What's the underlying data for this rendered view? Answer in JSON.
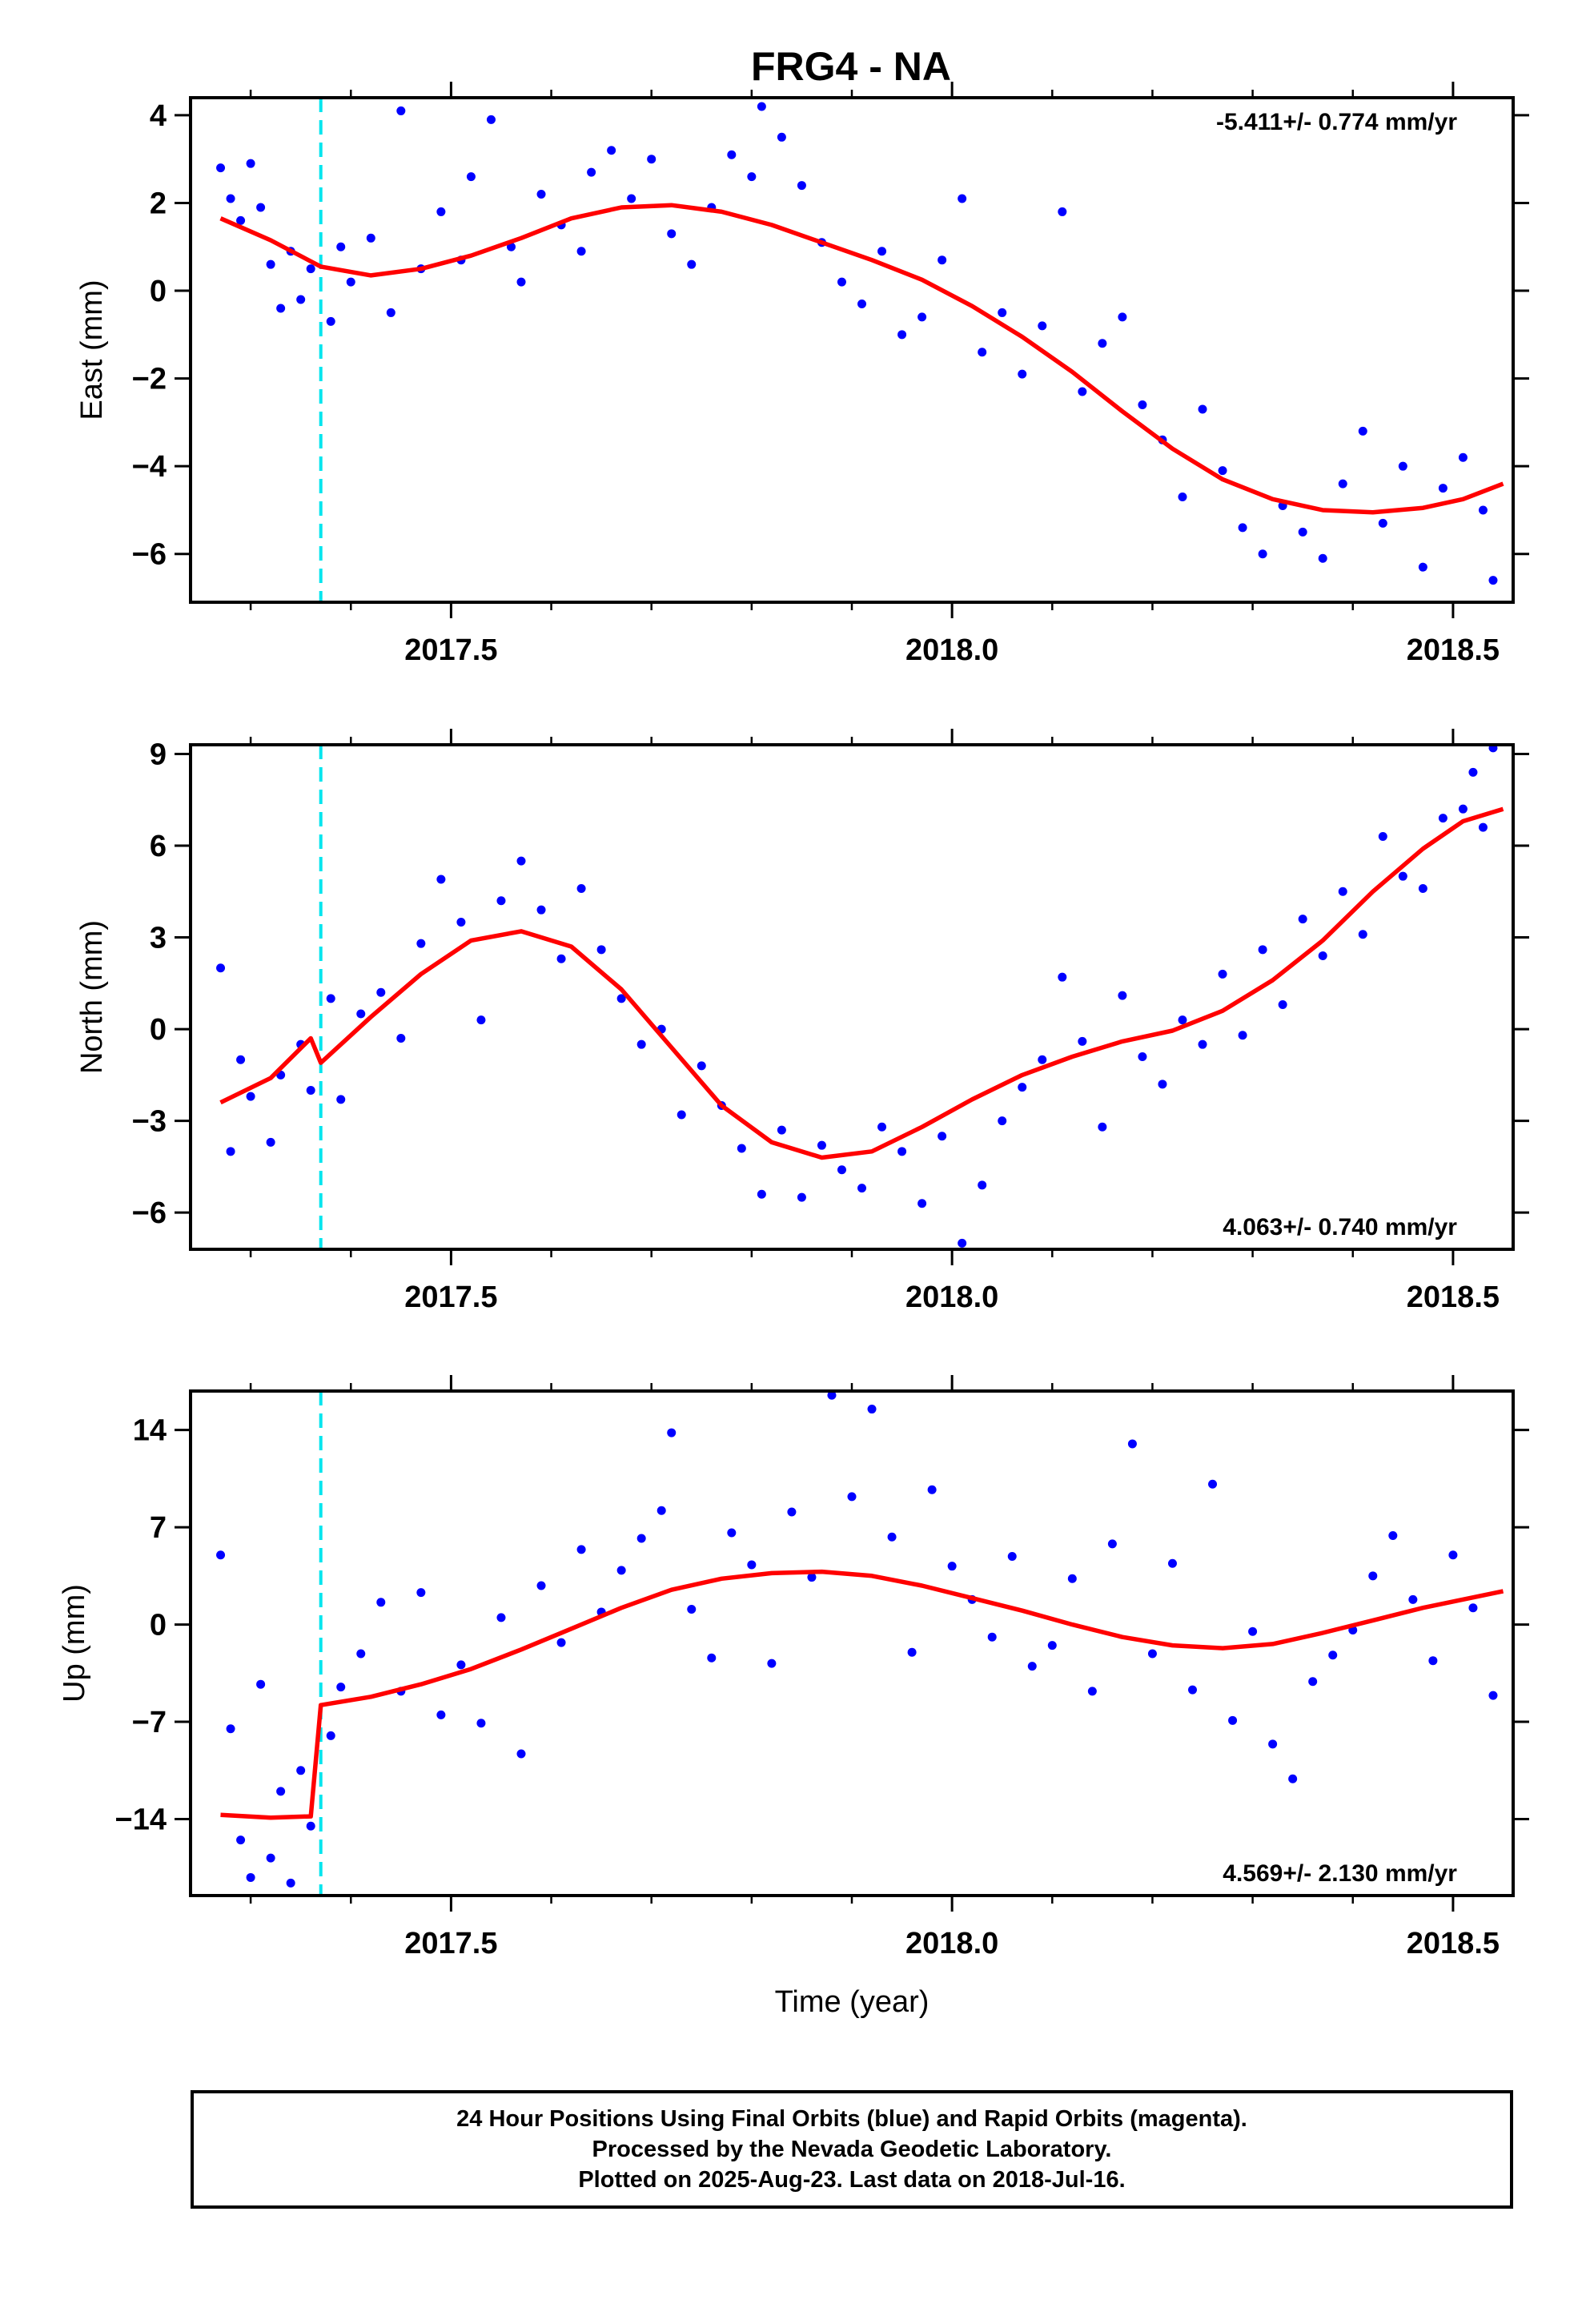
{
  "title": "FRG4 - NA",
  "footer": {
    "line1": "24 Hour Positions Using Final Orbits (blue) and Rapid Orbits (magenta).",
    "line2": "Processed by the Nevada Geodetic Laboratory.",
    "line3": "Plotted on 2025-Aug-23. Last data on 2018-Jul-16."
  },
  "colors": {
    "final_points": "#0000ff",
    "model": "#ff0000",
    "offset_line": "#00e5ee",
    "frame": "#000000"
  },
  "chart_data": [
    {
      "type": "scatter",
      "ylabel": "East (mm)",
      "xlabel": "",
      "xlim": [
        2017.24,
        2018.56
      ],
      "ylim": [
        -7.1,
        4.4
      ],
      "xticks": [
        2017.5,
        2018.0,
        2018.5
      ],
      "xtick_labels": [
        "2017.5",
        "2018.0",
        "2018.5"
      ],
      "yticks": [
        4,
        2,
        0,
        -2,
        -4,
        -6
      ],
      "ytick_labels": [
        "4",
        "2",
        "0",
        "−2",
        "−4",
        "−6"
      ],
      "rate": "-5.411+/- 0.774 mm/yr",
      "rate_position": "top-right",
      "offset_epoch": 2017.37,
      "model": {
        "x": [
          2017.27,
          2017.32,
          2017.37,
          2017.42,
          2017.47,
          2017.52,
          2017.57,
          2017.62,
          2017.67,
          2017.72,
          2017.77,
          2017.82,
          2017.87,
          2017.92,
          2017.97,
          2018.02,
          2018.07,
          2018.12,
          2018.17,
          2018.22,
          2018.27,
          2018.32,
          2018.37,
          2018.42,
          2018.47,
          2018.51,
          2018.55
        ],
        "y": [
          1.65,
          1.15,
          0.55,
          0.35,
          0.5,
          0.8,
          1.2,
          1.65,
          1.9,
          1.95,
          1.8,
          1.5,
          1.1,
          0.7,
          0.25,
          -0.35,
          -1.05,
          -1.85,
          -2.75,
          -3.6,
          -4.3,
          -4.75,
          -5.0,
          -5.05,
          -4.95,
          -4.75,
          -4.4
        ]
      },
      "points": {
        "x": [
          2017.27,
          2017.28,
          2017.29,
          2017.3,
          2017.31,
          2017.32,
          2017.33,
          2017.34,
          2017.35,
          2017.36,
          2017.38,
          2017.39,
          2017.4,
          2017.42,
          2017.44,
          2017.45,
          2017.47,
          2017.49,
          2017.51,
          2017.52,
          2017.54,
          2017.56,
          2017.57,
          2017.59,
          2017.61,
          2017.63,
          2017.64,
          2017.66,
          2017.68,
          2017.7,
          2017.72,
          2017.74,
          2017.76,
          2017.78,
          2017.8,
          2017.81,
          2017.83,
          2017.85,
          2017.87,
          2017.89,
          2017.91,
          2017.93,
          2017.95,
          2017.97,
          2017.99,
          2018.01,
          2018.03,
          2018.05,
          2018.07,
          2018.09,
          2018.11,
          2018.13,
          2018.15,
          2018.17,
          2018.19,
          2018.21,
          2018.23,
          2018.25,
          2018.27,
          2018.29,
          2018.31,
          2018.33,
          2018.35,
          2018.37,
          2018.39,
          2018.41,
          2018.43,
          2018.45,
          2018.47,
          2018.49,
          2018.51,
          2018.53,
          2018.54
        ],
        "y": [
          2.8,
          2.1,
          1.6,
          2.9,
          1.9,
          0.6,
          -0.4,
          0.9,
          -0.2,
          0.5,
          -0.7,
          1.0,
          0.2,
          1.2,
          -0.5,
          4.1,
          0.5,
          1.8,
          0.7,
          2.6,
          3.9,
          1.0,
          0.2,
          2.2,
          1.5,
          0.9,
          2.7,
          3.2,
          2.1,
          3.0,
          1.3,
          0.6,
          1.9,
          3.1,
          2.6,
          4.2,
          3.5,
          2.4,
          1.1,
          0.2,
          -0.3,
          0.9,
          -1.0,
          -0.6,
          0.7,
          2.1,
          -1.4,
          -0.5,
          -1.9,
          -0.8,
          1.8,
          -2.3,
          -1.2,
          -0.6,
          -2.6,
          -3.4,
          -4.7,
          -2.7,
          -4.1,
          -5.4,
          -6.0,
          -4.9,
          -5.5,
          -6.1,
          -4.4,
          -3.2,
          -5.3,
          -4.0,
          -6.3,
          -4.5,
          -3.8,
          -5.0,
          -6.6
        ]
      }
    },
    {
      "type": "scatter",
      "ylabel": "North (mm)",
      "xlabel": "",
      "xlim": [
        2017.24,
        2018.56
      ],
      "ylim": [
        -7.2,
        9.3
      ],
      "xticks": [
        2017.5,
        2018.0,
        2018.5
      ],
      "xtick_labels": [
        "2017.5",
        "2018.0",
        "2018.5"
      ],
      "yticks": [
        9,
        6,
        3,
        0,
        -3,
        -6
      ],
      "ytick_labels": [
        "9",
        "6",
        "3",
        "0",
        "−3",
        "−6"
      ],
      "rate": "4.063+/- 0.740 mm/yr",
      "rate_position": "bottom-right",
      "offset_epoch": 2017.37,
      "model": {
        "x": [
          2017.27,
          2017.32,
          2017.36,
          2017.37,
          2017.42,
          2017.47,
          2017.52,
          2017.57,
          2017.62,
          2017.67,
          2017.72,
          2017.77,
          2017.82,
          2017.87,
          2017.92,
          2017.97,
          2018.02,
          2018.07,
          2018.12,
          2018.17,
          2018.22,
          2018.27,
          2018.32,
          2018.37,
          2018.42,
          2018.47,
          2018.51,
          2018.55
        ],
        "y": [
          -2.4,
          -1.6,
          -0.3,
          -1.1,
          0.4,
          1.8,
          2.9,
          3.2,
          2.7,
          1.3,
          -0.6,
          -2.5,
          -3.7,
          -4.2,
          -4.0,
          -3.2,
          -2.3,
          -1.5,
          -0.9,
          -0.4,
          -0.05,
          0.6,
          1.6,
          2.9,
          4.5,
          5.9,
          6.8,
          7.2
        ]
      },
      "points": {
        "x": [
          2017.27,
          2017.28,
          2017.29,
          2017.3,
          2017.32,
          2017.33,
          2017.35,
          2017.36,
          2017.38,
          2017.39,
          2017.41,
          2017.43,
          2017.45,
          2017.47,
          2017.49,
          2017.51,
          2017.53,
          2017.55,
          2017.57,
          2017.59,
          2017.61,
          2017.63,
          2017.65,
          2017.67,
          2017.69,
          2017.71,
          2017.73,
          2017.75,
          2017.77,
          2017.79,
          2017.81,
          2017.83,
          2017.85,
          2017.87,
          2017.89,
          2017.91,
          2017.93,
          2017.95,
          2017.97,
          2017.99,
          2018.01,
          2018.03,
          2018.05,
          2018.07,
          2018.09,
          2018.11,
          2018.13,
          2018.15,
          2018.17,
          2018.19,
          2018.21,
          2018.23,
          2018.25,
          2018.27,
          2018.29,
          2018.31,
          2018.33,
          2018.35,
          2018.37,
          2018.39,
          2018.41,
          2018.43,
          2018.45,
          2018.47,
          2018.49,
          2018.51,
          2018.52,
          2018.53,
          2018.54
        ],
        "y": [
          2.0,
          -4.0,
          -1.0,
          -2.2,
          -3.7,
          -1.5,
          -0.5,
          -2.0,
          1.0,
          -2.3,
          0.5,
          1.2,
          -0.3,
          2.8,
          4.9,
          3.5,
          0.3,
          4.2,
          5.5,
          3.9,
          2.3,
          4.6,
          2.6,
          1.0,
          -0.5,
          0.0,
          -2.8,
          -1.2,
          -2.5,
          -3.9,
          -5.4,
          -3.3,
          -5.5,
          -3.8,
          -4.6,
          -5.2,
          -3.2,
          -4.0,
          -5.7,
          -3.5,
          -7.0,
          -5.1,
          -3.0,
          -1.9,
          -1.0,
          1.7,
          -0.4,
          -3.2,
          1.1,
          -0.9,
          -1.8,
          0.3,
          -0.5,
          1.8,
          -0.2,
          2.6,
          0.8,
          3.6,
          2.4,
          4.5,
          3.1,
          6.3,
          5.0,
          4.6,
          6.9,
          7.2,
          8.4,
          6.6,
          9.2
        ]
      }
    },
    {
      "type": "scatter",
      "ylabel": "Up (mm)",
      "xlabel": "Time (year)",
      "xlim": [
        2017.24,
        2018.56
      ],
      "ylim": [
        -19.5,
        16.8
      ],
      "xticks": [
        2017.5,
        2018.0,
        2018.5
      ],
      "xtick_labels": [
        "2017.5",
        "2018.0",
        "2018.5"
      ],
      "yticks": [
        14,
        7,
        0,
        -7,
        -14
      ],
      "ytick_labels": [
        "14",
        "7",
        "0",
        "−7",
        "−14"
      ],
      "rate": "4.569+/- 2.130 mm/yr",
      "rate_position": "bottom-right",
      "offset_epoch": 2017.37,
      "model": {
        "x": [
          2017.27,
          2017.32,
          2017.36,
          2017.37,
          2017.42,
          2017.47,
          2017.52,
          2017.57,
          2017.62,
          2017.67,
          2017.72,
          2017.77,
          2017.82,
          2017.87,
          2017.92,
          2017.97,
          2018.02,
          2018.07,
          2018.12,
          2018.17,
          2018.22,
          2018.27,
          2018.32,
          2018.37,
          2018.42,
          2018.47,
          2018.51,
          2018.55
        ],
        "y": [
          -13.7,
          -13.9,
          -13.8,
          -5.8,
          -5.2,
          -4.3,
          -3.2,
          -1.8,
          -0.3,
          1.2,
          2.5,
          3.3,
          3.7,
          3.8,
          3.5,
          2.8,
          1.9,
          1.0,
          0.0,
          -0.9,
          -1.5,
          -1.7,
          -1.4,
          -0.6,
          0.3,
          1.2,
          1.8,
          2.4
        ]
      },
      "points": {
        "x": [
          2017.27,
          2017.28,
          2017.29,
          2017.3,
          2017.31,
          2017.32,
          2017.33,
          2017.34,
          2017.35,
          2017.36,
          2017.38,
          2017.39,
          2017.41,
          2017.43,
          2017.45,
          2017.47,
          2017.49,
          2017.51,
          2017.53,
          2017.55,
          2017.57,
          2017.59,
          2017.61,
          2017.63,
          2017.65,
          2017.67,
          2017.69,
          2017.71,
          2017.72,
          2017.74,
          2017.76,
          2017.78,
          2017.8,
          2017.82,
          2017.84,
          2017.86,
          2017.88,
          2017.9,
          2017.92,
          2017.94,
          2017.96,
          2017.98,
          2018.0,
          2018.02,
          2018.04,
          2018.06,
          2018.08,
          2018.1,
          2018.12,
          2018.14,
          2018.16,
          2018.18,
          2018.2,
          2018.22,
          2018.24,
          2018.26,
          2018.28,
          2018.3,
          2018.32,
          2018.34,
          2018.36,
          2018.38,
          2018.4,
          2018.42,
          2018.44,
          2018.46,
          2018.48,
          2018.5,
          2018.52,
          2018.54
        ],
        "y": [
          5.0,
          -7.5,
          -15.5,
          -18.2,
          -4.3,
          -16.8,
          -12.0,
          -18.6,
          -10.5,
          -14.5,
          -8.0,
          -4.5,
          -2.1,
          1.6,
          -4.8,
          2.3,
          -6.5,
          -2.9,
          -7.1,
          0.5,
          -9.3,
          2.8,
          -1.3,
          5.4,
          0.9,
          3.9,
          6.2,
          8.2,
          13.8,
          1.1,
          -2.4,
          6.6,
          4.3,
          -2.8,
          8.1,
          3.4,
          16.5,
          9.2,
          15.5,
          6.3,
          -2.0,
          9.7,
          4.2,
          1.8,
          -0.9,
          4.9,
          -3.0,
          -1.5,
          3.3,
          -4.8,
          5.8,
          13.0,
          -2.1,
          4.4,
          -4.7,
          10.1,
          -6.9,
          -0.5,
          -8.6,
          -11.1,
          -4.1,
          -2.2,
          -0.4,
          3.5,
          6.4,
          1.8,
          -2.6,
          5.0,
          1.2,
          -5.1
        ]
      }
    }
  ]
}
